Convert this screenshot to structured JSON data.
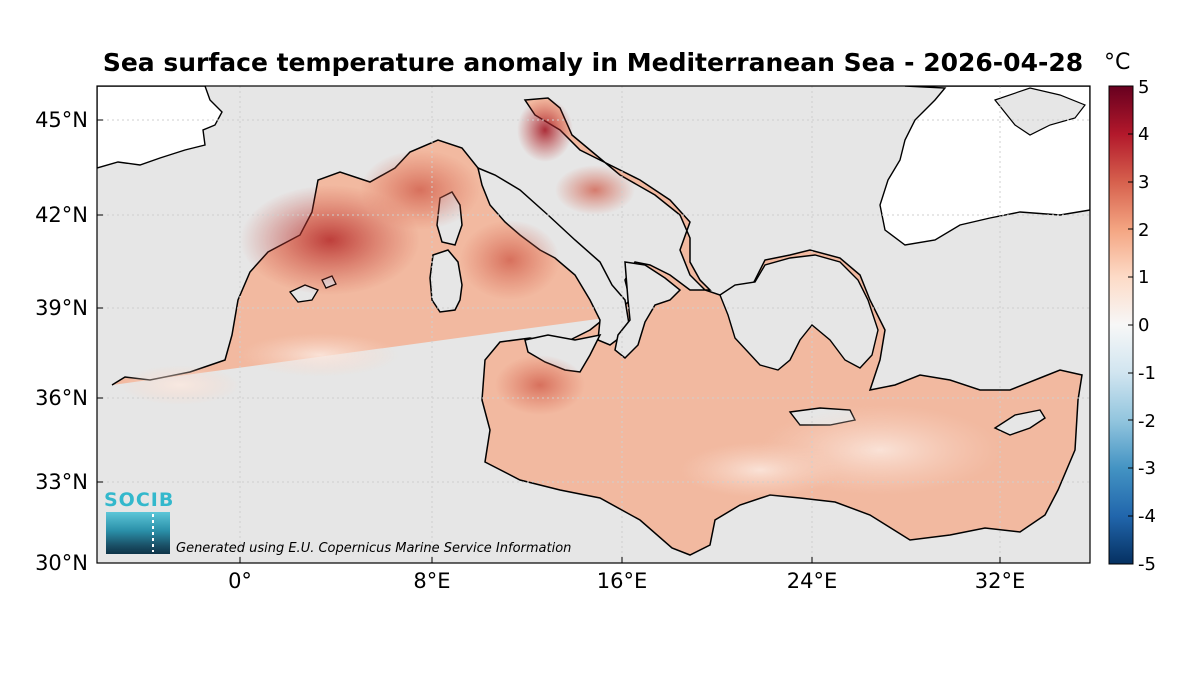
{
  "title": "Sea surface temperature anomaly in Mediterranean Sea - 2026-04-28",
  "unit": "°C",
  "credit": "Generated using E.U. Copernicus Marine Service Information",
  "logo_text": "SOCIB",
  "axes": {
    "x_ticks": [
      "0°",
      "8°E",
      "16°E",
      "24°E",
      "32°E"
    ],
    "x_tick_values": [
      0,
      8,
      16,
      24,
      32
    ],
    "y_ticks": [
      "45°N",
      "42°N",
      "39°N",
      "36°N",
      "33°N",
      "30°N"
    ],
    "y_tick_values": [
      45,
      42,
      39,
      36,
      33,
      30
    ],
    "lon_range": [
      -5.6,
      36.4
    ],
    "lat_range": [
      30,
      46
    ]
  },
  "colorbar": {
    "ticks": [
      "5",
      "4",
      "3",
      "2",
      "1",
      "0",
      "-1",
      "-2",
      "-3",
      "-4",
      "-5"
    ],
    "range": [
      -5,
      5
    ],
    "colors": [
      "#053061",
      "#2166ac",
      "#4393c3",
      "#92c5de",
      "#d1e5f0",
      "#f7f7f7",
      "#fddbc7",
      "#f4a582",
      "#d6604d",
      "#b2182b",
      "#67001f"
    ]
  },
  "colors": {
    "land": "#e6e6e6",
    "outside": "#ffffff",
    "coast": "#000000",
    "warm_strong": "#b2182b",
    "warm_mid": "#e3826a",
    "warm_light": "#f8c9b3",
    "neutral": "#f7f4f2"
  }
}
